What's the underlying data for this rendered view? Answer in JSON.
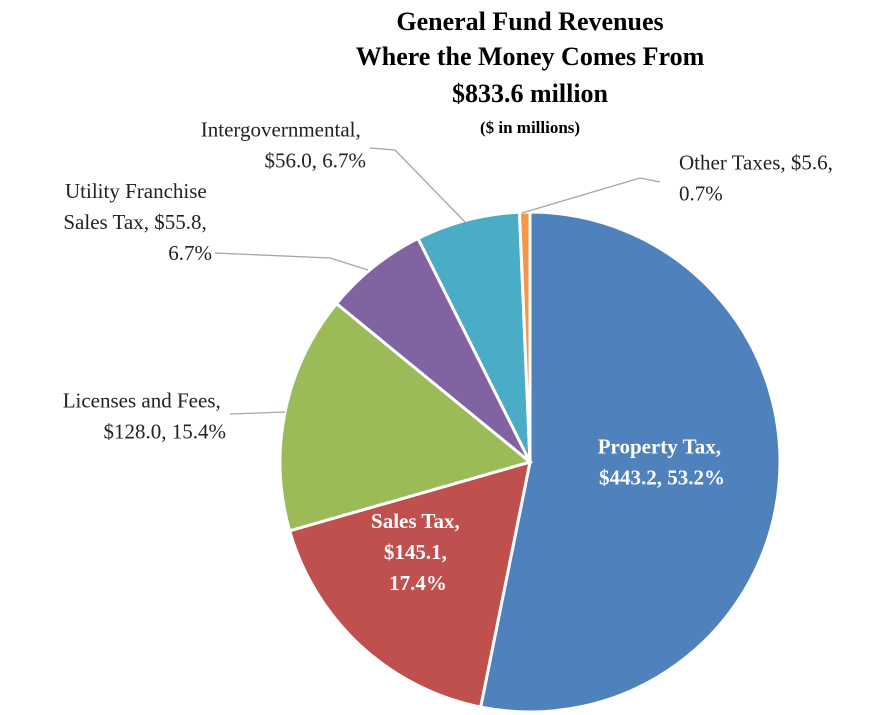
{
  "chart_data": {
    "type": "pie",
    "title": [
      "General Fund Revenues",
      "Where the Money Comes From",
      "$833.6 million"
    ],
    "subtitle": "($ in millions)",
    "values": [
      443.2,
      145.1,
      128.0,
      55.8,
      56.0,
      5.6
    ],
    "value_labels": [
      "Property Tax, $443.2, 53.2%",
      "Sales Tax, $145.1, 17.4%",
      "Licenses and Fees, $128.0, 15.4%",
      "Utility Franchise Sales Tax, $55.8, 6.7%",
      "Intergovernmental, $56.0, 6.7%",
      "Other Taxes, $5.6, 0.7%"
    ],
    "colors": [
      "#4f81bd",
      "#c0504d",
      "#9bbb59",
      "#8064a2",
      "#4bacc6",
      "#f79646"
    ]
  }
}
